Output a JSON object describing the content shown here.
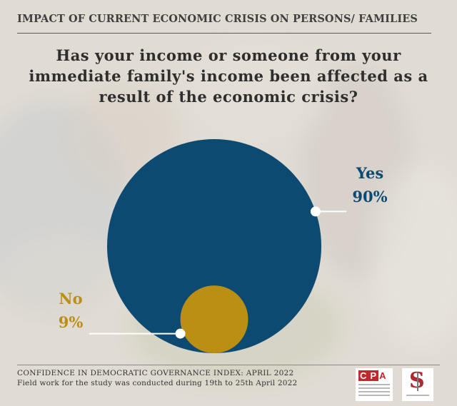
{
  "header": {
    "title": "IMPACT OF CURRENT ECONOMIC CRISIS ON PERSONS/ FAMILIES"
  },
  "question": {
    "line1": "Has your income or someone from your",
    "line2": "immediate family's income been affected as a",
    "line3": "result of the economic crisis?"
  },
  "chart_data": {
    "type": "pie",
    "style": "proportional-circles",
    "slices": [
      {
        "label": "Yes",
        "value": 90,
        "value_text": "90%",
        "color": "#0d4a72"
      },
      {
        "label": "No",
        "value": 9,
        "value_text": "9%",
        "color": "#bb8f14"
      }
    ]
  },
  "footer": {
    "line1": "CONFIDENCE IN DEMOCRATIC GOVERNANCE INDEX: APRIL 2022",
    "line2": "Field work for the study was conducted during 19th to 25th April 2022"
  },
  "logos": {
    "cpa": {
      "c": "C",
      "p": "P",
      "a": "A"
    }
  }
}
